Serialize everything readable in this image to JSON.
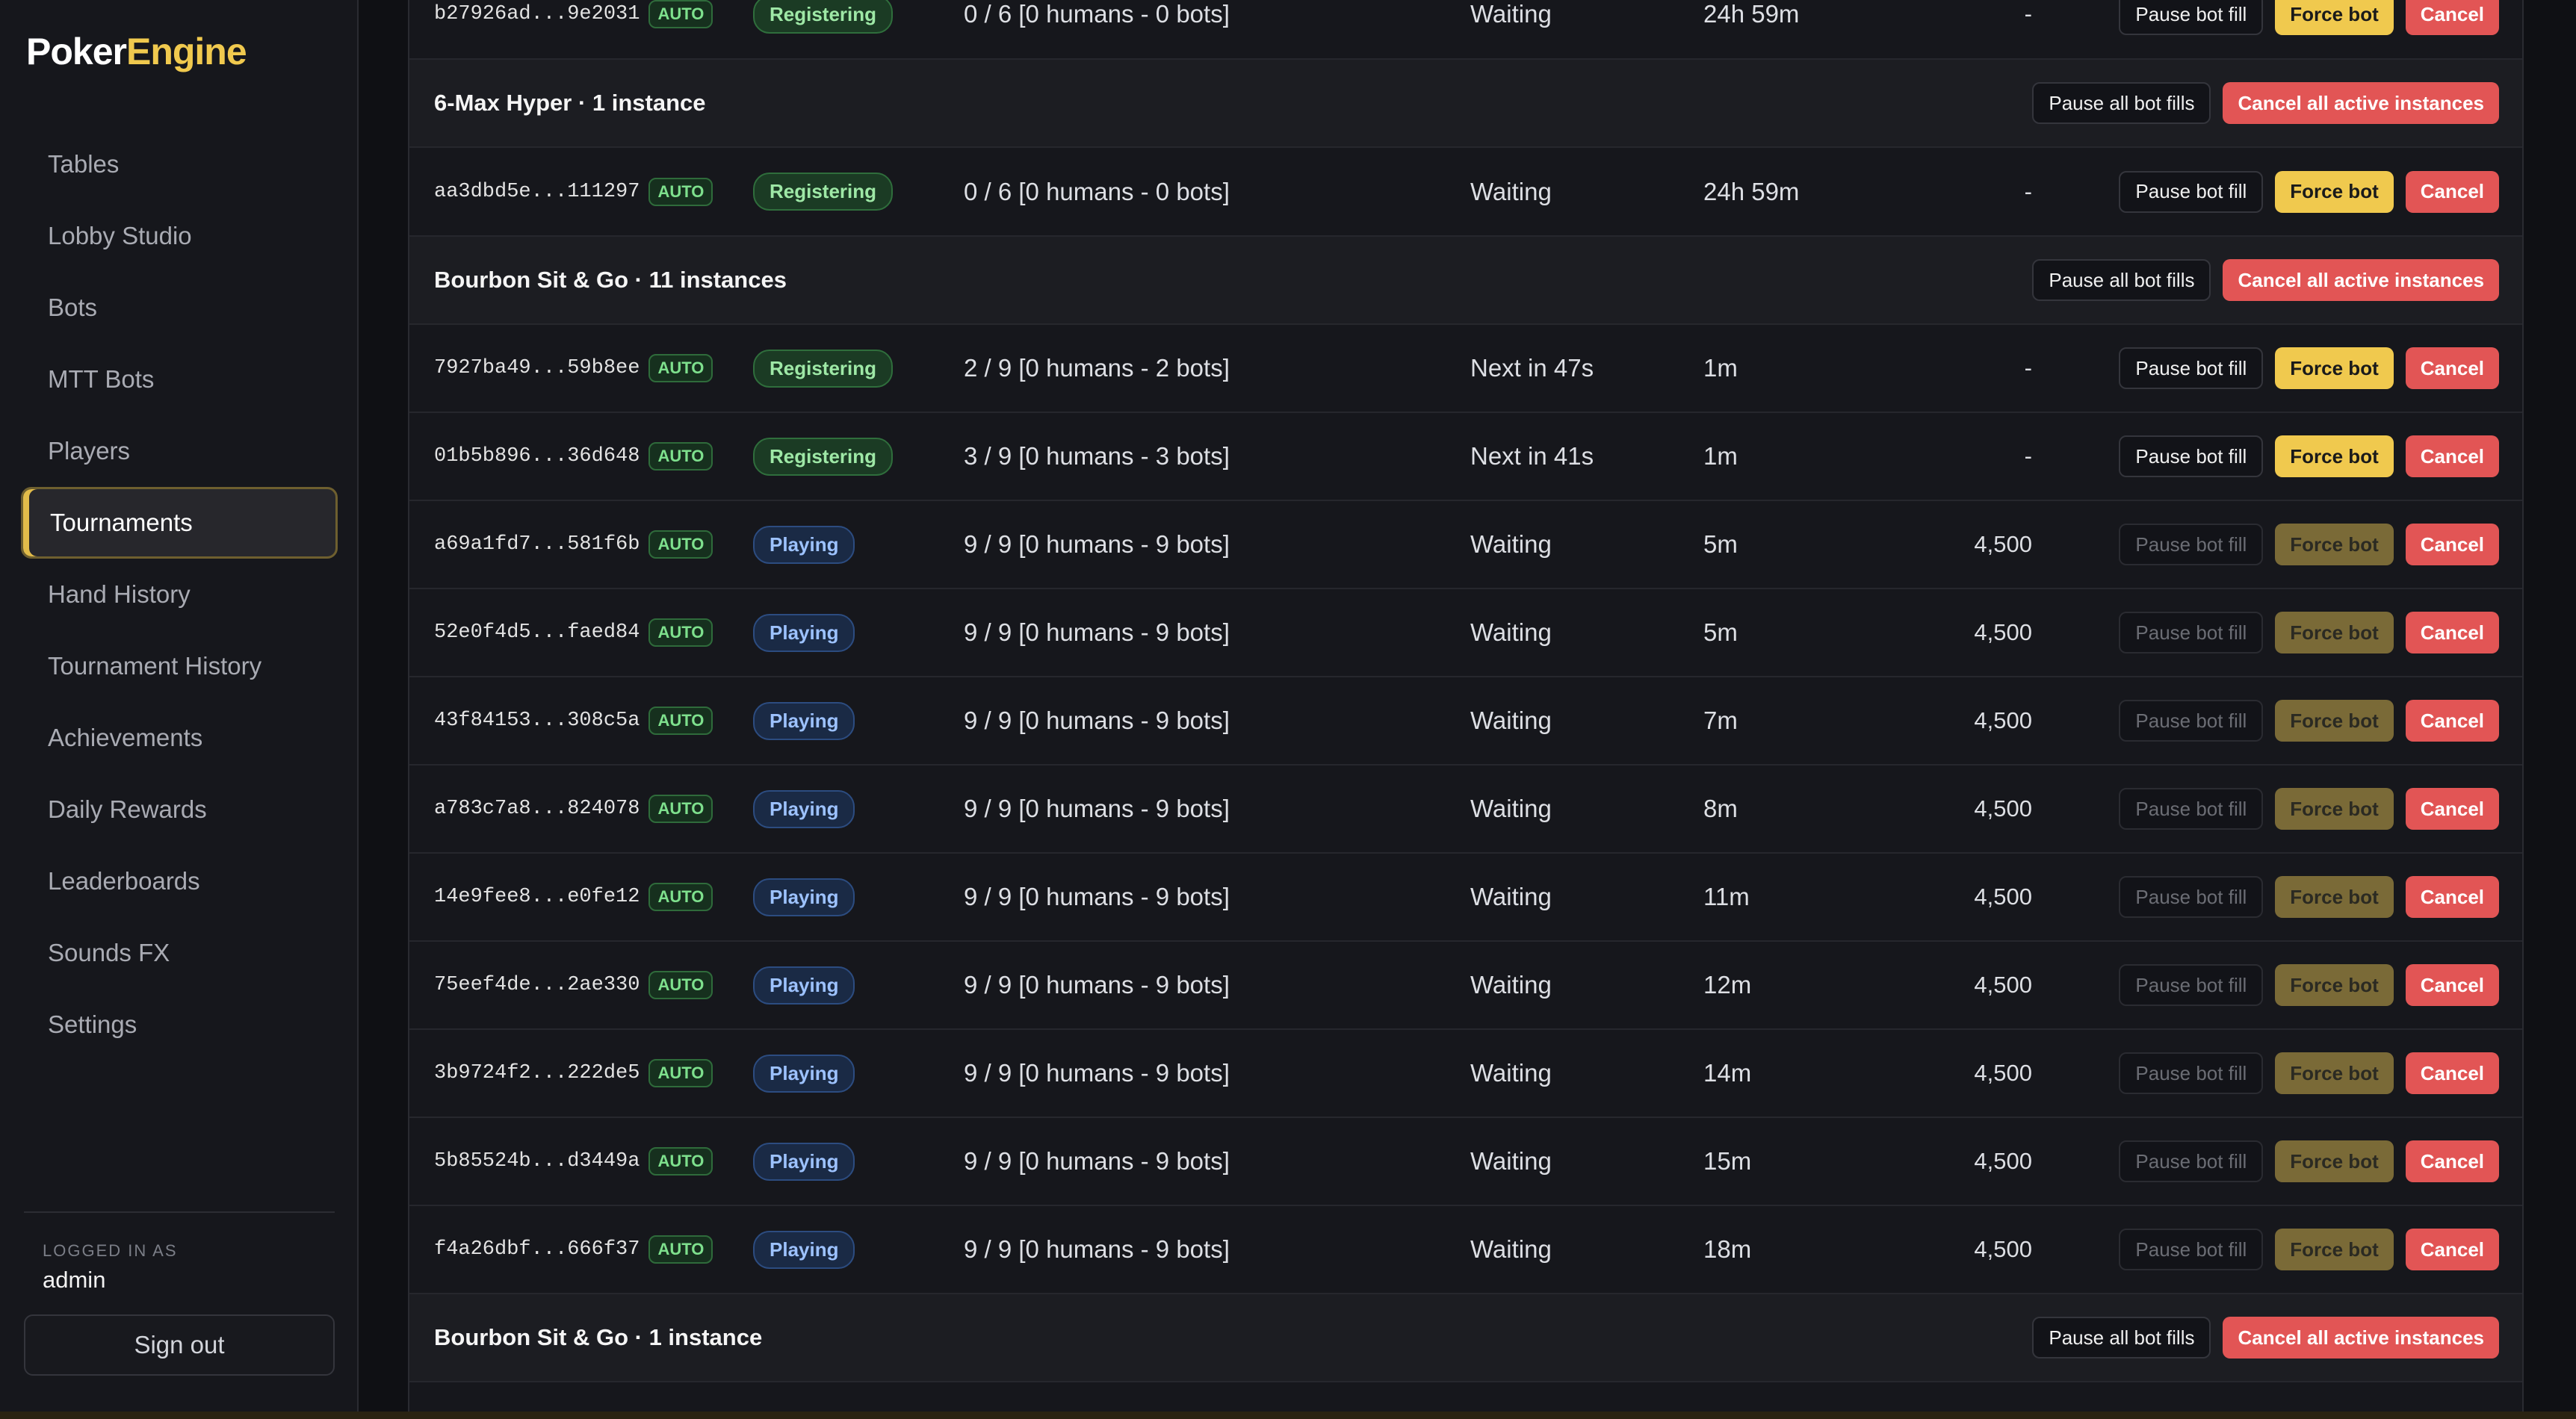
{
  "brand": {
    "part1": "Poker",
    "part2": "Engine"
  },
  "sidebar": {
    "items": [
      {
        "label": "Tables"
      },
      {
        "label": "Lobby Studio"
      },
      {
        "label": "Bots"
      },
      {
        "label": "MTT Bots"
      },
      {
        "label": "Players"
      },
      {
        "label": "Tournaments",
        "active": true
      },
      {
        "label": "Hand History"
      },
      {
        "label": "Tournament History"
      },
      {
        "label": "Achievements"
      },
      {
        "label": "Daily Rewards"
      },
      {
        "label": "Leaderboards"
      },
      {
        "label": "Sounds FX"
      },
      {
        "label": "Settings"
      }
    ],
    "logged_in_label": "LOGGED IN AS",
    "user": "admin",
    "sign_out": "Sign out"
  },
  "labels": {
    "auto": "AUTO",
    "pause_bot_fill": "Pause bot fill",
    "force_bot": "Force bot",
    "cancel": "Cancel",
    "pause_all": "Pause all bot fills",
    "cancel_all": "Cancel all active instances"
  },
  "rows": [
    {
      "type": "instance",
      "id": "b27926ad...9e2031",
      "status": "Registering",
      "players": "0 / 6 [0 humans - 0 bots]",
      "next": "Waiting",
      "duration": "24h 59m",
      "chips": "-",
      "paused": false
    },
    {
      "type": "group",
      "title": "6-Max Hyper · 1 instance"
    },
    {
      "type": "instance",
      "id": "aa3dbd5e...111297",
      "status": "Registering",
      "players": "0 / 6 [0 humans - 0 bots]",
      "next": "Waiting",
      "duration": "24h 59m",
      "chips": "-",
      "paused": false
    },
    {
      "type": "group",
      "title": "Bourbon Sit & Go · 11 instances"
    },
    {
      "type": "instance",
      "id": "7927ba49...59b8ee",
      "status": "Registering",
      "players": "2 / 9 [0 humans - 2 bots]",
      "next": "Next in 47s",
      "duration": "1m",
      "chips": "-",
      "paused": false
    },
    {
      "type": "instance",
      "id": "01b5b896...36d648",
      "status": "Registering",
      "players": "3 / 9 [0 humans - 3 bots]",
      "next": "Next in 41s",
      "duration": "1m",
      "chips": "-",
      "paused": false
    },
    {
      "type": "instance",
      "id": "a69a1fd7...581f6b",
      "status": "Playing",
      "players": "9 / 9 [0 humans - 9 bots]",
      "next": "Waiting",
      "duration": "5m",
      "chips": "4,500",
      "paused": true
    },
    {
      "type": "instance",
      "id": "52e0f4d5...faed84",
      "status": "Playing",
      "players": "9 / 9 [0 humans - 9 bots]",
      "next": "Waiting",
      "duration": "5m",
      "chips": "4,500",
      "paused": true
    },
    {
      "type": "instance",
      "id": "43f84153...308c5a",
      "status": "Playing",
      "players": "9 / 9 [0 humans - 9 bots]",
      "next": "Waiting",
      "duration": "7m",
      "chips": "4,500",
      "paused": true
    },
    {
      "type": "instance",
      "id": "a783c7a8...824078",
      "status": "Playing",
      "players": "9 / 9 [0 humans - 9 bots]",
      "next": "Waiting",
      "duration": "8m",
      "chips": "4,500",
      "paused": true
    },
    {
      "type": "instance",
      "id": "14e9fee8...e0fe12",
      "status": "Playing",
      "players": "9 / 9 [0 humans - 9 bots]",
      "next": "Waiting",
      "duration": "11m",
      "chips": "4,500",
      "paused": true
    },
    {
      "type": "instance",
      "id": "75eef4de...2ae330",
      "status": "Playing",
      "players": "9 / 9 [0 humans - 9 bots]",
      "next": "Waiting",
      "duration": "12m",
      "chips": "4,500",
      "paused": true
    },
    {
      "type": "instance",
      "id": "3b9724f2...222de5",
      "status": "Playing",
      "players": "9 / 9 [0 humans - 9 bots]",
      "next": "Waiting",
      "duration": "14m",
      "chips": "4,500",
      "paused": true
    },
    {
      "type": "instance",
      "id": "5b85524b...d3449a",
      "status": "Playing",
      "players": "9 / 9 [0 humans - 9 bots]",
      "next": "Waiting",
      "duration": "15m",
      "chips": "4,500",
      "paused": true
    },
    {
      "type": "instance",
      "id": "f4a26dbf...666f37",
      "status": "Playing",
      "players": "9 / 9 [0 humans - 9 bots]",
      "next": "Waiting",
      "duration": "18m",
      "chips": "4,500",
      "paused": true
    },
    {
      "type": "group",
      "title": "Bourbon Sit & Go · 1 instance"
    }
  ],
  "colors": {
    "accent": "#f0c94e",
    "danger": "#e25555",
    "registering": "#9ee8a6",
    "playing": "#9dc2ff"
  }
}
